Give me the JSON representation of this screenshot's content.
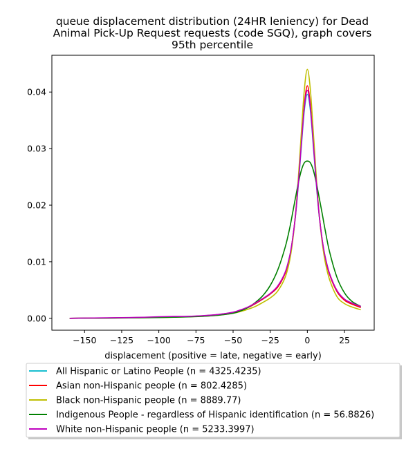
{
  "chart_data": {
    "type": "line",
    "title_lines": [
      "queue displacement distribution (24HR leniency) for Dead",
      "Animal Pick-Up Request  requests (code SGQ), graph covers",
      "95th percentile"
    ],
    "xlabel": "displacement (positive = late, negative = early)",
    "ylabel": "",
    "xlim": [
      -172,
      45
    ],
    "ylim": [
      -0.0021,
      0.0465
    ],
    "xticks": [
      -150,
      -125,
      -100,
      -75,
      -50,
      -25,
      0,
      25
    ],
    "xtick_labels": [
      "−150",
      "−125",
      "−100",
      "−75",
      "−50",
      "−25",
      "0",
      "25"
    ],
    "yticks": [
      0.0,
      0.01,
      0.02,
      0.03,
      0.04
    ],
    "ytick_labels": [
      "0.00",
      "0.01",
      "0.02",
      "0.03",
      "0.04"
    ],
    "grid": false,
    "legend_position": "below",
    "x": [
      -160,
      -150,
      -140,
      -130,
      -120,
      -110,
      -100,
      -90,
      -80,
      -70,
      -60,
      -50,
      -45,
      -40,
      -35,
      -30,
      -25,
      -20,
      -15,
      -12,
      -10,
      -8,
      -6,
      -4,
      -2,
      0,
      2,
      4,
      6,
      8,
      10,
      12,
      15,
      20,
      25,
      30,
      36
    ],
    "series": [
      {
        "name": "All Hispanic or Latino People (n = 4325.4235)",
        "color": "#17becf",
        "values": [
          0.0,
          3e-05,
          5e-05,
          8e-05,
          0.0001,
          0.00013,
          0.00018,
          0.00025,
          0.00033,
          0.00045,
          0.00065,
          0.00105,
          0.0014,
          0.0019,
          0.0026,
          0.0034,
          0.0043,
          0.0056,
          0.008,
          0.0108,
          0.0138,
          0.018,
          0.0238,
          0.0305,
          0.0368,
          0.0396,
          0.0368,
          0.0305,
          0.0238,
          0.018,
          0.0138,
          0.0108,
          0.0078,
          0.0048,
          0.0033,
          0.0026,
          0.002
        ]
      },
      {
        "name": "Asian non-Hispanic people (n = 802.4285)",
        "color": "#ff0000",
        "values": [
          0.0,
          3e-05,
          5e-05,
          8e-05,
          0.0001,
          0.00013,
          0.00018,
          0.00024,
          0.00032,
          0.00045,
          0.00065,
          0.00105,
          0.0014,
          0.0019,
          0.0026,
          0.0034,
          0.0043,
          0.0055,
          0.0079,
          0.0107,
          0.0138,
          0.0182,
          0.0243,
          0.0313,
          0.0378,
          0.0411,
          0.0378,
          0.0313,
          0.0243,
          0.0182,
          0.0138,
          0.0107,
          0.0077,
          0.0047,
          0.0032,
          0.0025,
          0.0019
        ]
      },
      {
        "name": "Black non-Hispanic people (n = 8889.77)",
        "color": "#bfbf00",
        "values": [
          0.0,
          2e-05,
          4e-05,
          6e-05,
          8e-05,
          0.00011,
          0.00015,
          0.0002,
          0.00027,
          0.00037,
          0.00055,
          0.0009,
          0.0012,
          0.0016,
          0.0021,
          0.0028,
          0.0036,
          0.0048,
          0.0072,
          0.0101,
          0.0134,
          0.0183,
          0.0251,
          0.033,
          0.0405,
          0.044,
          0.0405,
          0.033,
          0.0251,
          0.0183,
          0.0134,
          0.01,
          0.0068,
          0.0038,
          0.0026,
          0.002,
          0.0015
        ]
      },
      {
        "name": "Indigenous People - regardless of Hispanic identification (n = 56.8826)",
        "color": "#008000",
        "values": [
          0.0,
          2e-05,
          3e-05,
          5e-05,
          7e-05,
          0.0001,
          0.00014,
          0.00019,
          0.00026,
          0.00036,
          0.00055,
          0.0009,
          0.0013,
          0.0019,
          0.0028,
          0.004,
          0.0058,
          0.0085,
          0.0125,
          0.0158,
          0.0185,
          0.0213,
          0.024,
          0.0262,
          0.0275,
          0.0278,
          0.0275,
          0.0262,
          0.024,
          0.0213,
          0.0185,
          0.0156,
          0.0117,
          0.0072,
          0.0045,
          0.003,
          0.0021
        ]
      },
      {
        "name": "White non-Hispanic people (n = 5233.3997)",
        "color": "#bf00bf",
        "values": [
          0.0,
          4e-05,
          7e-05,
          0.0001,
          0.00014,
          0.00019,
          0.00028,
          0.00033,
          0.00035,
          0.00048,
          0.00068,
          0.00108,
          0.0015,
          0.002,
          0.0027,
          0.0035,
          0.0044,
          0.0057,
          0.0081,
          0.0109,
          0.0139,
          0.0182,
          0.0241,
          0.0309,
          0.0373,
          0.0403,
          0.0373,
          0.0309,
          0.0241,
          0.0182,
          0.0139,
          0.0109,
          0.0079,
          0.0049,
          0.0034,
          0.0027,
          0.0021
        ]
      }
    ]
  }
}
